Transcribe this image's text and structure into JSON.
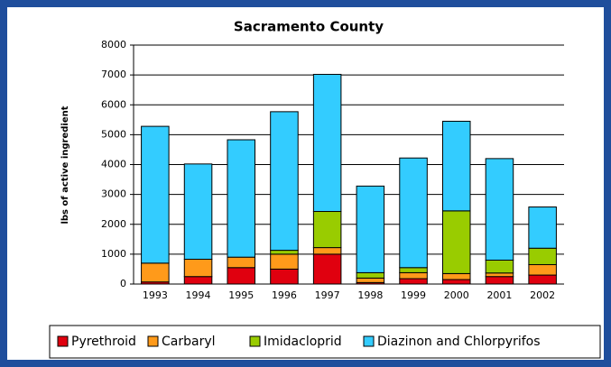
{
  "chart_data": {
    "type": "stacked_bar",
    "title": "Sacramento County",
    "y_label": "lbs of active ingredient",
    "categories": [
      "1993",
      "1994",
      "1995",
      "1996",
      "1997",
      "1998",
      "1999",
      "2000",
      "2001",
      "2002"
    ],
    "series": [
      {
        "name": "Pyrethroid",
        "color": "#e0000f",
        "values": [
          70,
          250,
          550,
          500,
          1000,
          50,
          180,
          150,
          250,
          300
        ]
      },
      {
        "name": "Carbaryl",
        "color": "#ff9a1a",
        "values": [
          630,
          580,
          350,
          500,
          220,
          150,
          200,
          200,
          120,
          350
        ]
      },
      {
        "name": "Imidacloprid",
        "color": "#99cc00",
        "values": [
          0,
          0,
          0,
          130,
          1210,
          180,
          170,
          2100,
          430,
          550
        ]
      },
      {
        "name": "Diazinon and Chlorpyrifos",
        "color": "#33ccff",
        "values": [
          4580,
          3190,
          3930,
          4640,
          4590,
          2900,
          3670,
          3000,
          3400,
          1380
        ]
      }
    ],
    "ylim": [
      0,
      8000
    ],
    "yticks": [
      0,
      1000,
      2000,
      3000,
      4000,
      5000,
      6000,
      7000,
      8000
    ],
    "grid": true,
    "legend": "bottom"
  }
}
